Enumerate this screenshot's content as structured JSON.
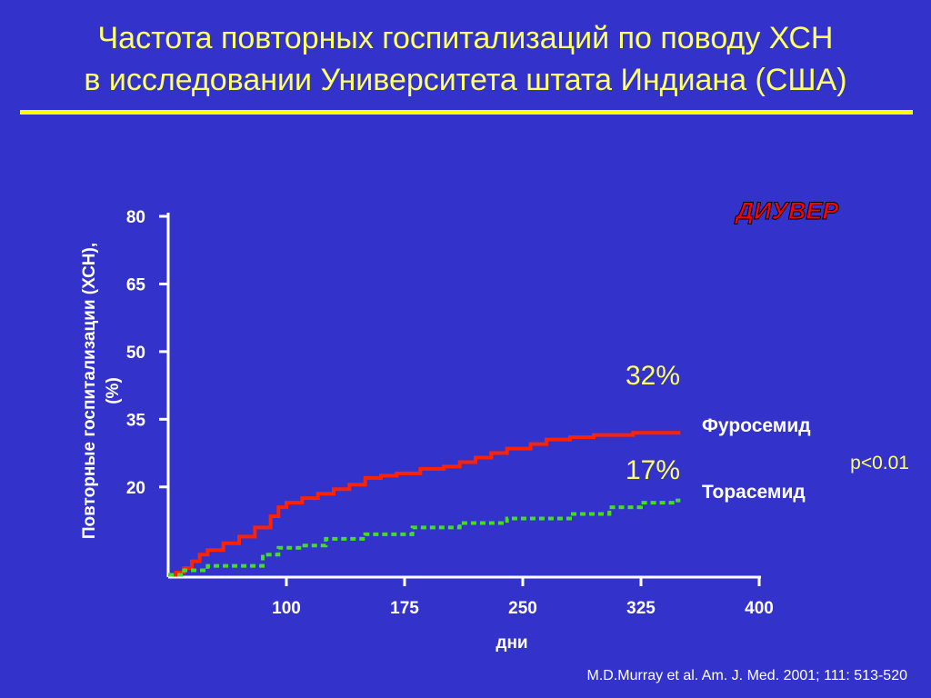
{
  "slide": {
    "title_line1": "Частота  повторных  госпитализаций  по  поводу ХСН",
    "title_line2": "в исследовании Университета штата Индиана (США)",
    "citation": "M.D.Murray et al. Am. J. Med. 2001; 111: 513-520",
    "brand": "ДИУВЕР",
    "p_value": "p<0.01"
  },
  "colors": {
    "background": "#3333cc",
    "title": "#ffff66",
    "rule": "#ffff00",
    "furosemide": "#ff2200",
    "torasemide": "#44dd22",
    "brand": "#ff0000"
  },
  "chart_data": {
    "type": "line",
    "title": "",
    "xlabel": "дни",
    "ylabel": "Повторные госпитализации (ХСН), (%)",
    "xlim": [
      25,
      400
    ],
    "ylim": [
      0,
      80
    ],
    "xticks": [
      100,
      175,
      250,
      325,
      400
    ],
    "yticks": [
      20,
      35,
      50,
      65,
      80
    ],
    "grid": false,
    "series": [
      {
        "name": "Фуросемид",
        "style": "solid",
        "end_label": "32%",
        "x": [
          25,
          30,
          35,
          40,
          45,
          50,
          60,
          70,
          80,
          90,
          95,
          100,
          110,
          120,
          130,
          140,
          150,
          160,
          170,
          185,
          200,
          210,
          220,
          230,
          240,
          255,
          265,
          280,
          295,
          320,
          350
        ],
        "y": [
          0.5,
          1,
          2,
          3.5,
          5,
          6,
          7.5,
          9,
          11,
          13.5,
          15.5,
          16.5,
          17.5,
          18.5,
          19.5,
          20.5,
          22,
          22.5,
          23,
          24,
          24.5,
          25.5,
          26.5,
          27.5,
          28.5,
          29.5,
          30.5,
          31,
          31.5,
          32,
          32
        ]
      },
      {
        "name": "Торасемид",
        "style": "dotted",
        "end_label": "17%",
        "x": [
          25,
          35,
          50,
          80,
          85,
          95,
          110,
          125,
          150,
          180,
          210,
          240,
          280,
          305,
          325,
          345,
          350
        ],
        "y": [
          0.5,
          1.5,
          2.5,
          2.5,
          5,
          6.5,
          7,
          8.5,
          9.5,
          11,
          12,
          13,
          14,
          15.5,
          16.5,
          17,
          17
        ]
      }
    ]
  }
}
